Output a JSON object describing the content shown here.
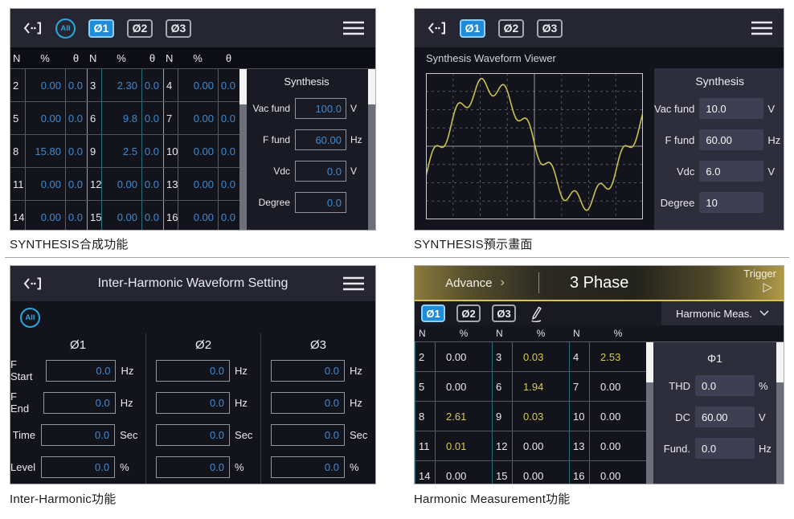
{
  "colors": {
    "panel_bg": "#13131c",
    "header_bg": "#262633",
    "tab_active_blue": "#1e8cd8",
    "value_blue": "#3b8ad1",
    "value_yellow": "#d6c94f",
    "teal_border": "#2b6f7e",
    "wave_yellow": "#c9c14e",
    "gold_line": "#d8c255",
    "side_panel_bg": "#2d2d3c"
  },
  "captions": {
    "tl": "SYNTHESIS合成功能",
    "tr": "SYNTHESIS預示畫面",
    "bl": "Inter-Harmonic功能",
    "br": "Harmonic Measurement功能"
  },
  "synth": {
    "tabs": {
      "all": "All",
      "p1": "Ø1",
      "p2": "Ø2",
      "p3": "Ø3"
    },
    "col_headers": [
      "N",
      "%",
      "θ"
    ],
    "rows": [
      [
        "2",
        "0.00",
        "0.0",
        "3",
        "2.30",
        "0.0",
        "4",
        "0.00",
        "0.0"
      ],
      [
        "5",
        "0.00",
        "0.0",
        "6",
        "9.8",
        "0.0",
        "7",
        "0.00",
        "0.0"
      ],
      [
        "8",
        "15.80",
        "0.0",
        "9",
        "2.5",
        "0.0",
        "10",
        "0.00",
        "0.0"
      ],
      [
        "11",
        "0.00",
        "0.0",
        "12",
        "0.00",
        "0.0",
        "13",
        "0.00",
        "0.0"
      ],
      [
        "14",
        "0.00",
        "0.0",
        "15",
        "0.00",
        "0.0",
        "16",
        "0.00",
        "0.0"
      ]
    ],
    "panel": {
      "title": "Synthesis",
      "fields": [
        {
          "label": "Vac fund",
          "value": "100.0",
          "unit": "V"
        },
        {
          "label": "F fund",
          "value": "60.00",
          "unit": "Hz"
        },
        {
          "label": "Vdc",
          "value": "0.0",
          "unit": "V"
        },
        {
          "label": "Degree",
          "value": "0.0",
          "unit": ""
        }
      ]
    }
  },
  "preview": {
    "tabs": {
      "p1": "Ø1",
      "p2": "Ø2",
      "p3": "Ø3"
    },
    "subtitle": "Synthesis Waveform Viewer",
    "panel": {
      "title": "Synthesis",
      "fields": [
        {
          "label": "Vac fund",
          "value": "10.0",
          "unit": "V"
        },
        {
          "label": "F fund",
          "value": "60.00",
          "unit": "Hz"
        },
        {
          "label": "Vdc",
          "value": "6.0",
          "unit": "V"
        },
        {
          "label": "Degree",
          "value": "10",
          "unit": ""
        }
      ]
    },
    "waveform": {
      "type": "line",
      "color": "#c9c14e",
      "fundamental": 1,
      "harmonic_n": 8,
      "harmonic_amp": 0.16,
      "phase": -0.5,
      "dc": 0.04,
      "cycles": 1.15,
      "grid_divs": 8
    }
  },
  "inter": {
    "title": "Inter-Harmonic Waveform Setting",
    "all": "All",
    "columns": [
      "Ø1",
      "Ø2",
      "Ø3"
    ],
    "row_labels": [
      "F Start",
      "F End",
      "Time",
      "Level"
    ],
    "units": [
      "Hz",
      "Hz",
      "Sec",
      "%"
    ],
    "values": [
      [
        "0.0",
        "0.0",
        "0.0",
        "0.0"
      ],
      [
        "0.0",
        "0.0",
        "0.0",
        "0.0"
      ],
      [
        "0.0",
        "0.0",
        "0.0",
        "0.0"
      ]
    ]
  },
  "harm": {
    "breadcrumb": {
      "parent": "Advance",
      "chevron": "›",
      "current": "3 Phase"
    },
    "trigger": {
      "label": "Trigger",
      "icon": "▷"
    },
    "tabs": {
      "p1": "Ø1",
      "p2": "Ø2",
      "p3": "Ø3"
    },
    "dropdown": {
      "label": "Harmonic Meas."
    },
    "col_headers": [
      "N",
      "%"
    ],
    "rows": [
      [
        {
          "n": "2",
          "v": "0.00"
        },
        {
          "n": "3",
          "v": "0.03"
        },
        {
          "n": "4",
          "v": "2.53"
        }
      ],
      [
        {
          "n": "5",
          "v": "0.00"
        },
        {
          "n": "6",
          "v": "1.94"
        },
        {
          "n": "7",
          "v": "0.00"
        }
      ],
      [
        {
          "n": "8",
          "v": "2.61"
        },
        {
          "n": "9",
          "v": "0.03"
        },
        {
          "n": "10",
          "v": "0.00"
        }
      ],
      [
        {
          "n": "11",
          "v": "0.01"
        },
        {
          "n": "12",
          "v": "0.00"
        },
        {
          "n": "13",
          "v": "0.00"
        }
      ],
      [
        {
          "n": "14",
          "v": "0.00"
        },
        {
          "n": "15",
          "v": "0.00"
        },
        {
          "n": "16",
          "v": "0.00"
        }
      ]
    ],
    "panel": {
      "title": "Φ1",
      "fields": [
        {
          "label": "THD",
          "value": "0.0",
          "unit": "%"
        },
        {
          "label": "DC",
          "value": "60.00",
          "unit": "V"
        },
        {
          "label": "Fund.",
          "value": "0.0",
          "unit": "Hz"
        }
      ]
    }
  }
}
